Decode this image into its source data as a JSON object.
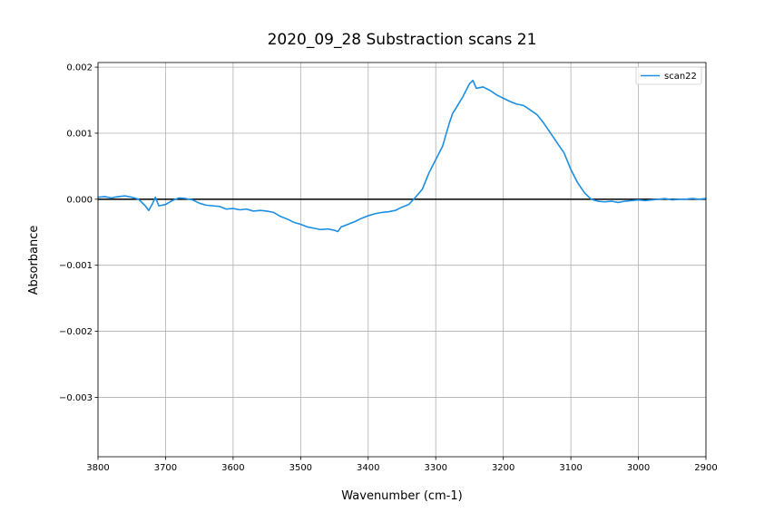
{
  "chart_data": {
    "type": "line",
    "title": "2020_09_28 Substraction scans 21",
    "xlabel": "Wavenumber (cm-1)",
    "ylabel": "Absorbance",
    "xlim": [
      3800,
      2900
    ],
    "ylim": [
      -0.0039,
      0.00207
    ],
    "x_inverted": true,
    "grid": true,
    "legend_position": "top-right",
    "x_ticks": [
      3800,
      3700,
      3600,
      3500,
      3400,
      3300,
      3200,
      3100,
      3000,
      2900
    ],
    "x_tick_labels": [
      "3800",
      "3700",
      "3600",
      "3500",
      "3400",
      "3300",
      "3200",
      "3100",
      "3000",
      "2900"
    ],
    "y_ticks": [
      0.002,
      0.001,
      0.0,
      -0.001,
      -0.002,
      -0.003
    ],
    "y_tick_labels": [
      "0.002",
      "0.001",
      "0.000",
      "−0.001",
      "−0.002",
      "−0.003"
    ],
    "reference_line": {
      "y": 0.0,
      "color": "#000000"
    },
    "series": [
      {
        "name": "scan22",
        "color": "#1a8fe3",
        "x": [
          3800,
          3790,
          3780,
          3770,
          3760,
          3750,
          3740,
          3730,
          3725,
          3720,
          3715,
          3710,
          3700,
          3690,
          3680,
          3670,
          3660,
          3650,
          3640,
          3630,
          3620,
          3610,
          3600,
          3590,
          3580,
          3570,
          3560,
          3550,
          3540,
          3530,
          3520,
          3510,
          3500,
          3490,
          3480,
          3470,
          3460,
          3450,
          3445,
          3440,
          3430,
          3420,
          3410,
          3400,
          3390,
          3380,
          3370,
          3360,
          3350,
          3340,
          3330,
          3320,
          3310,
          3300,
          3290,
          3280,
          3275,
          3270,
          3260,
          3255,
          3250,
          3245,
          3240,
          3230,
          3220,
          3210,
          3200,
          3190,
          3180,
          3170,
          3160,
          3150,
          3140,
          3130,
          3120,
          3110,
          3100,
          3090,
          3080,
          3070,
          3060,
          3050,
          3040,
          3030,
          3020,
          3010,
          3000,
          2990,
          2980,
          2970,
          2960,
          2950,
          2940,
          2930,
          2920,
          2910,
          2900
        ],
        "y": [
          3e-05,
          4e-05,
          2e-05,
          4e-05,
          5e-05,
          3e-05,
          0.0,
          -0.0001,
          -0.00017,
          -8e-05,
          3e-05,
          -0.0001,
          -8e-05,
          -2e-05,
          2e-05,
          1e-05,
          -1e-05,
          -6e-05,
          -9e-05,
          -0.0001,
          -0.00011,
          -0.00015,
          -0.00014,
          -0.00016,
          -0.00015,
          -0.00018,
          -0.00017,
          -0.00018,
          -0.0002,
          -0.00026,
          -0.0003,
          -0.00035,
          -0.00038,
          -0.00042,
          -0.00044,
          -0.00046,
          -0.00045,
          -0.00047,
          -0.00049,
          -0.00042,
          -0.00038,
          -0.00034,
          -0.00029,
          -0.00025,
          -0.00022,
          -0.0002,
          -0.00019,
          -0.00017,
          -0.00012,
          -8e-05,
          3e-05,
          0.00015,
          0.0004,
          0.0006,
          0.0008,
          0.00115,
          0.0013,
          0.00138,
          0.00155,
          0.00165,
          0.00175,
          0.0018,
          0.00168,
          0.0017,
          0.00165,
          0.00158,
          0.00153,
          0.00148,
          0.00144,
          0.00142,
          0.00135,
          0.00128,
          0.00115,
          0.001,
          0.00085,
          0.0007,
          0.00045,
          0.00025,
          0.0001,
          0.0,
          -3e-05,
          -4e-05,
          -3e-05,
          -5e-05,
          -3e-05,
          -2e-05,
          -1e-05,
          -2e-05,
          -1e-05,
          0.0,
          1e-05,
          -1e-05,
          0.0,
          0.0,
          1e-05,
          0.0,
          1e-05
        ]
      }
    ]
  }
}
